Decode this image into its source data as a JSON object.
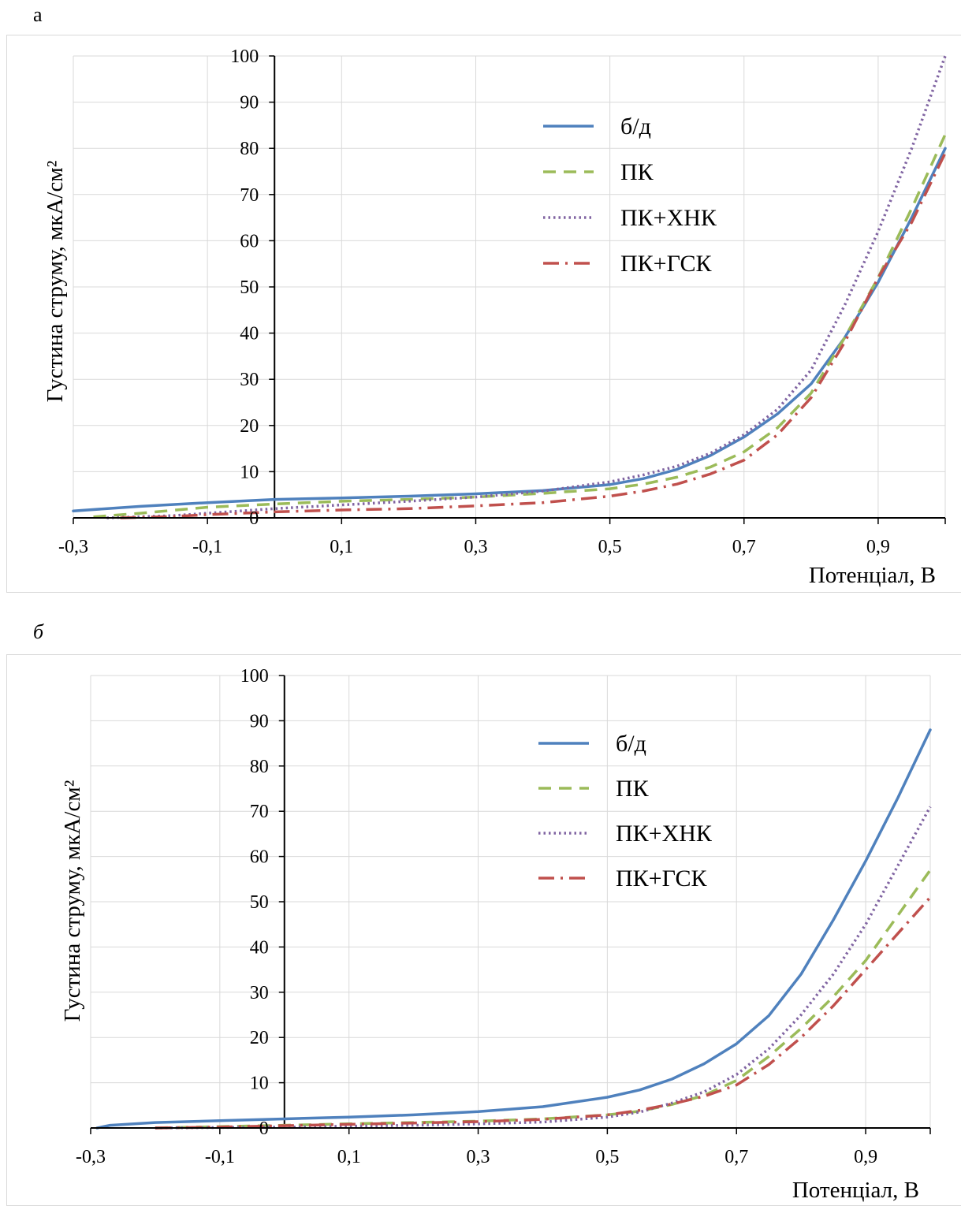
{
  "panels": [
    {
      "label": "а"
    },
    {
      "label": "б"
    }
  ],
  "colors": {
    "bd": "#4f81bd",
    "pk": "#9bbb59",
    "pk_hnk": "#8064a2",
    "pk_gsk": "#c0504d",
    "grid": "#d9d9d9",
    "axis": "#000000"
  },
  "chart_data": [
    {
      "type": "line",
      "title": "",
      "xlabel": "Потенціал, В",
      "ylabel": "Густина струму, мкА/см²",
      "xlim": [
        -0.3,
        1.0
      ],
      "ylim": [
        0,
        100
      ],
      "xticks": [
        -0.3,
        -0.1,
        0.1,
        0.3,
        0.5,
        0.7,
        0.9
      ],
      "xtick_labels": [
        "-0,3",
        "-0,1",
        "0,1",
        "0,3",
        "0,5",
        "0,7",
        "0,9"
      ],
      "yticks": [
        0,
        10,
        20,
        30,
        40,
        50,
        60,
        70,
        80,
        90,
        100
      ],
      "ytick_labels": [
        "0",
        "10",
        "20",
        "30",
        "40",
        "50",
        "60",
        "70",
        "80",
        "90",
        "100"
      ],
      "grid": true,
      "legend_position": "top-center",
      "series": [
        {
          "name": "б/д",
          "style": "solid",
          "x": [
            -0.3,
            -0.2,
            -0.1,
            0.0,
            0.1,
            0.2,
            0.3,
            0.4,
            0.5,
            0.55,
            0.6,
            0.65,
            0.7,
            0.75,
            0.8,
            0.85,
            0.9,
            0.95,
            1.0
          ],
          "y": [
            1.5,
            2.5,
            3.3,
            4.0,
            4.3,
            4.7,
            5.2,
            5.9,
            7.2,
            8.5,
            10.5,
            13.5,
            17.5,
            22.5,
            29,
            39,
            51,
            65,
            80
          ]
        },
        {
          "name": "ПК",
          "style": "dashed",
          "x": [
            -0.27,
            -0.2,
            -0.1,
            0.0,
            0.1,
            0.2,
            0.3,
            0.4,
            0.5,
            0.55,
            0.6,
            0.65,
            0.7,
            0.75,
            0.8,
            0.85,
            0.9,
            0.95,
            1.0
          ],
          "y": [
            0.2,
            1.0,
            2.3,
            3.0,
            3.6,
            4.0,
            4.5,
            5.3,
            6.3,
            7.3,
            8.8,
            11.0,
            14.3,
            19.5,
            27,
            39,
            52,
            67,
            83
          ]
        },
        {
          "name": "ПК+ХНК",
          "style": "dotted",
          "x": [
            -0.25,
            -0.15,
            -0.1,
            0.0,
            0.1,
            0.2,
            0.3,
            0.4,
            0.5,
            0.55,
            0.6,
            0.65,
            0.7,
            0.75,
            0.8,
            0.85,
            0.9,
            0.95,
            1.0
          ],
          "y": [
            0.0,
            0.5,
            1.0,
            2.0,
            2.8,
            3.6,
            4.5,
            5.8,
            7.8,
            9.3,
            11.2,
            14.0,
            18.0,
            23.5,
            32,
            46,
            62,
            80,
            100
          ]
        },
        {
          "name": "ПК+ГСК",
          "style": "dashdot",
          "x": [
            -0.23,
            -0.15,
            -0.1,
            0.0,
            0.1,
            0.2,
            0.3,
            0.4,
            0.5,
            0.55,
            0.6,
            0.65,
            0.7,
            0.75,
            0.8,
            0.85,
            0.9,
            0.95,
            1.0
          ],
          "y": [
            0.0,
            0.3,
            0.7,
            1.3,
            1.7,
            2.0,
            2.6,
            3.3,
            4.7,
            5.8,
            7.3,
            9.5,
            12.5,
            18.0,
            26,
            38,
            52,
            64,
            79
          ]
        }
      ]
    },
    {
      "type": "line",
      "title": "",
      "xlabel": "Потенціал, В",
      "ylabel": "Густина струму, мкА/см²",
      "xlim": [
        -0.3,
        1.0
      ],
      "ylim": [
        0,
        100
      ],
      "xticks": [
        -0.3,
        -0.1,
        0.1,
        0.3,
        0.5,
        0.7,
        0.9
      ],
      "xtick_labels": [
        "-0,3",
        "-0,1",
        "0,1",
        "0,3",
        "0,5",
        "0,7",
        "0,9"
      ],
      "yticks": [
        0,
        10,
        20,
        30,
        40,
        50,
        60,
        70,
        80,
        90,
        100
      ],
      "ytick_labels": [
        "0",
        "10",
        "20",
        "30",
        "40",
        "50",
        "60",
        "70",
        "80",
        "90",
        "100"
      ],
      "grid": true,
      "legend_position": "top-center",
      "series": [
        {
          "name": "б/д",
          "style": "solid",
          "x": [
            -0.29,
            -0.27,
            -0.2,
            -0.1,
            0.0,
            0.1,
            0.2,
            0.3,
            0.4,
            0.5,
            0.55,
            0.6,
            0.65,
            0.7,
            0.75,
            0.8,
            0.85,
            0.9,
            0.95,
            1.0
          ],
          "y": [
            0.0,
            0.6,
            1.2,
            1.6,
            2.0,
            2.4,
            2.9,
            3.6,
            4.7,
            6.8,
            8.4,
            10.8,
            14.2,
            18.6,
            24.8,
            34,
            46,
            59,
            73,
            88
          ]
        },
        {
          "name": "ПК",
          "style": "dashed",
          "x": [
            -0.2,
            -0.1,
            0.0,
            0.1,
            0.2,
            0.3,
            0.4,
            0.5,
            0.55,
            0.6,
            0.65,
            0.7,
            0.75,
            0.8,
            0.85,
            0.9,
            0.95,
            1.0
          ],
          "y": [
            0.0,
            0.3,
            0.6,
            0.9,
            1.2,
            1.5,
            2.0,
            2.9,
            3.7,
            5.2,
            7.2,
            10.5,
            15.8,
            22,
            29,
            37,
            47,
            57
          ]
        },
        {
          "name": "ПК+ХНК",
          "style": "dotted",
          "x": [
            -0.2,
            -0.1,
            0.0,
            0.1,
            0.2,
            0.3,
            0.4,
            0.5,
            0.55,
            0.6,
            0.65,
            0.7,
            0.75,
            0.8,
            0.85,
            0.9,
            0.95,
            1.0
          ],
          "y": [
            0.0,
            0.1,
            0.2,
            0.4,
            0.6,
            0.9,
            1.3,
            2.4,
            3.5,
            5.5,
            8.0,
            11.8,
            17.5,
            25,
            34,
            45,
            58,
            71
          ]
        },
        {
          "name": "ПК+ГСК",
          "style": "dashdot",
          "x": [
            -0.2,
            -0.1,
            0.0,
            0.1,
            0.2,
            0.3,
            0.4,
            0.5,
            0.55,
            0.6,
            0.65,
            0.7,
            0.75,
            0.8,
            0.85,
            0.9,
            0.95,
            1.0
          ],
          "y": [
            0.0,
            0.2,
            0.5,
            0.8,
            1.1,
            1.4,
            1.9,
            2.9,
            3.9,
            5.3,
            7.0,
            9.5,
            14.0,
            20.0,
            27,
            35,
            43,
            51
          ]
        }
      ]
    }
  ]
}
